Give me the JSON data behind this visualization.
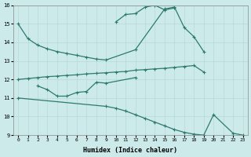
{
  "xlabel": "Humidex (Indice chaleur)",
  "bg_color": "#cceaea",
  "grid_color": "#b8d8d8",
  "line_color": "#2d7b6e",
  "xlim": [
    -0.5,
    23.5
  ],
  "ylim": [
    9,
    16
  ],
  "xtick_labels": [
    "0",
    "1",
    "2",
    "3",
    "4",
    "5",
    "6",
    "7",
    "8",
    "9",
    "10",
    "11",
    "12",
    "13",
    "14",
    "15",
    "16",
    "17",
    "18",
    "19",
    "20",
    "21",
    "22",
    "23"
  ],
  "ytick_labels": [
    "9",
    "10",
    "11",
    "12",
    "13",
    "14",
    "15",
    "16"
  ],
  "line1": {
    "x": [
      0,
      1,
      2,
      3,
      4,
      5,
      6,
      7,
      8,
      9,
      12,
      15,
      16,
      17,
      18,
      19
    ],
    "y": [
      15.0,
      14.2,
      13.85,
      13.65,
      13.5,
      13.4,
      13.3,
      13.2,
      13.1,
      13.05,
      13.6,
      15.8,
      15.9,
      14.8,
      14.3,
      13.5
    ]
  },
  "line2": {
    "x": [
      10,
      11,
      12,
      13,
      14,
      15,
      16
    ],
    "y": [
      15.1,
      15.5,
      15.55,
      15.9,
      16.0,
      15.75,
      15.85
    ]
  },
  "line3": {
    "x": [
      2,
      3,
      4,
      5,
      6,
      7,
      8,
      9,
      12
    ],
    "y": [
      11.65,
      11.45,
      11.1,
      11.1,
      11.3,
      11.35,
      11.85,
      11.8,
      12.1
    ]
  },
  "line4": {
    "x": [
      0,
      1,
      2,
      3,
      4,
      5,
      6,
      7,
      8,
      9,
      10,
      11,
      12,
      13,
      14,
      15,
      16,
      17,
      18,
      19
    ],
    "y": [
      12.0,
      12.05,
      12.1,
      12.15,
      12.18,
      12.22,
      12.25,
      12.3,
      12.33,
      12.36,
      12.4,
      12.43,
      12.5,
      12.53,
      12.57,
      12.6,
      12.65,
      12.7,
      12.75,
      12.4
    ]
  },
  "line5": {
    "x": [
      0,
      9,
      10,
      11,
      12,
      13,
      14,
      15,
      16,
      17,
      18,
      19,
      20,
      22,
      23
    ],
    "y": [
      11.0,
      10.55,
      10.45,
      10.3,
      10.1,
      9.9,
      9.7,
      9.5,
      9.3,
      9.15,
      9.05,
      9.0,
      10.1,
      9.1,
      9.0
    ]
  }
}
